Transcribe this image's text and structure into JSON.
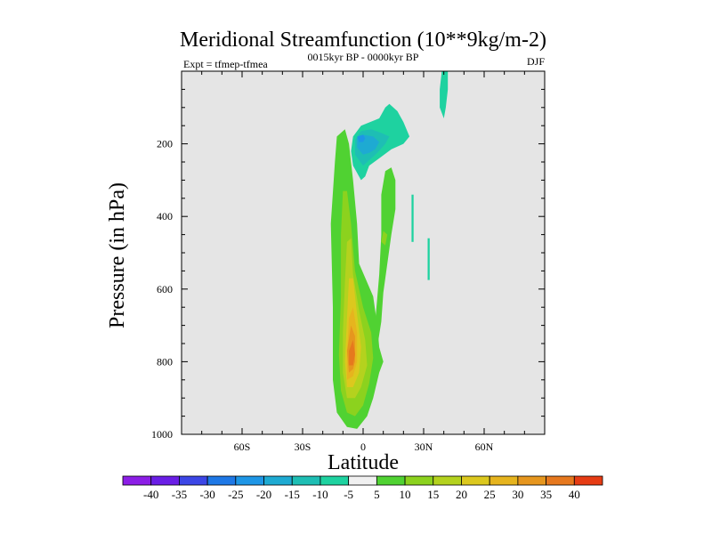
{
  "chart_data": {
    "type": "contour",
    "title": "Meridional Streamfunction (10**9kg/m-2)",
    "left_string": "Expt = tfmep-tfmea",
    "center_string": "0015kyr BP - 0000kyr BP",
    "right_string": "DJF",
    "xlabel": "Latitude",
    "ylabel": "Pressure (in hPa)",
    "xlim": [
      -90,
      90
    ],
    "ylim": [
      1000,
      0
    ],
    "x_ticks": [
      {
        "value": -60,
        "label": "60S"
      },
      {
        "value": -30,
        "label": "30S"
      },
      {
        "value": 0,
        "label": "0"
      },
      {
        "value": 30,
        "label": "30N"
      },
      {
        "value": 60,
        "label": "60N"
      }
    ],
    "y_ticks": [
      {
        "value": 200,
        "label": "200"
      },
      {
        "value": 400,
        "label": "400"
      },
      {
        "value": 600,
        "label": "600"
      },
      {
        "value": 800,
        "label": "800"
      },
      {
        "value": 1000,
        "label": "1000"
      }
    ],
    "background_color": "#e5e5e5",
    "colorbar": {
      "levels": [
        -40,
        -35,
        -30,
        -25,
        -20,
        -15,
        -10,
        -5,
        5,
        10,
        15,
        20,
        25,
        30,
        35,
        40
      ],
      "labels": [
        "-40",
        "-35",
        "-30",
        "-25",
        "-20",
        "-15",
        "-10",
        "-5",
        "5",
        "10",
        "15",
        "20",
        "25",
        "30",
        "35",
        "40"
      ],
      "colors": [
        "#8c1ee6",
        "#6a1ee6",
        "#3c46e6",
        "#1e78e6",
        "#1e96e6",
        "#1eaad2",
        "#1ebeb4",
        "#1ed2a0",
        "#f0f0f0",
        "#50d232",
        "#8cd21e",
        "#b4d21e",
        "#dcc81e",
        "#e6b41e",
        "#e6961e",
        "#e6781e",
        "#e63c14"
      ]
    },
    "contours": [
      {
        "name": "positive-cell-outer",
        "level": 5,
        "points": [
          [
            -8,
            980
          ],
          [
            -13,
            940
          ],
          [
            -15,
            850
          ],
          [
            -15,
            650
          ],
          [
            -16,
            420
          ],
          [
            -14,
            250
          ],
          [
            -13,
            180
          ],
          [
            -9,
            160
          ],
          [
            -7,
            200
          ],
          [
            -5,
            300
          ],
          [
            -3,
            420
          ],
          [
            -2,
            530
          ],
          [
            5,
            620
          ],
          [
            7,
            700
          ],
          [
            8,
            760
          ],
          [
            10,
            800
          ],
          [
            8,
            830
          ],
          [
            5,
            900
          ],
          [
            2,
            950
          ],
          [
            -3,
            985
          ]
        ]
      },
      {
        "name": "positive-cell-10",
        "level": 10,
        "points": [
          [
            -8,
            940
          ],
          [
            -11,
            880
          ],
          [
            -12,
            780
          ],
          [
            -11,
            620
          ],
          [
            -11,
            450
          ],
          [
            -10,
            330
          ],
          [
            -8,
            330
          ],
          [
            -6,
            420
          ],
          [
            -4,
            550
          ],
          [
            0,
            650
          ],
          [
            4,
            720
          ],
          [
            5,
            790
          ],
          [
            3,
            860
          ],
          [
            0,
            920
          ],
          [
            -4,
            950
          ]
        ]
      },
      {
        "name": "positive-cell-15",
        "level": 15,
        "points": [
          [
            -8,
            900
          ],
          [
            -10,
            830
          ],
          [
            -10,
            720
          ],
          [
            -9,
            580
          ],
          [
            -8,
            470
          ],
          [
            -6,
            460
          ],
          [
            -5,
            560
          ],
          [
            -2,
            660
          ],
          [
            1,
            740
          ],
          [
            2,
            810
          ],
          [
            -1,
            870
          ],
          [
            -4,
            900
          ]
        ]
      },
      {
        "name": "positive-cell-20",
        "level": 20,
        "points": [
          [
            -8,
            870
          ],
          [
            -9,
            800
          ],
          [
            -8,
            680
          ],
          [
            -7,
            570
          ],
          [
            -5,
            570
          ],
          [
            -3,
            670
          ],
          [
            -1,
            760
          ],
          [
            -2,
            830
          ],
          [
            -5,
            870
          ]
        ]
      },
      {
        "name": "positive-cell-25",
        "level": 25,
        "points": [
          [
            -8,
            850
          ],
          [
            -8,
            780
          ],
          [
            -7,
            680
          ],
          [
            -5,
            650
          ],
          [
            -3,
            720
          ],
          [
            -3,
            800
          ],
          [
            -5,
            840
          ]
        ]
      },
      {
        "name": "positive-cell-30",
        "level": 30,
        "points": [
          [
            -7,
            830
          ],
          [
            -8,
            770
          ],
          [
            -6,
            700
          ],
          [
            -4,
            730
          ],
          [
            -4,
            800
          ],
          [
            -5,
            820
          ]
        ]
      },
      {
        "name": "positive-cell-35",
        "level": 35,
        "points": [
          [
            -7,
            810
          ],
          [
            -7,
            770
          ],
          [
            -5,
            740
          ],
          [
            -4,
            780
          ],
          [
            -5,
            810
          ]
        ]
      },
      {
        "name": "positive-tongue-north",
        "level": 5,
        "points": [
          [
            7,
            760
          ],
          [
            6,
            690
          ],
          [
            8,
            560
          ],
          [
            9,
            450
          ],
          [
            9,
            340
          ],
          [
            11,
            275
          ],
          [
            14,
            265
          ],
          [
            16,
            300
          ],
          [
            16,
            380
          ],
          [
            14,
            450
          ],
          [
            12,
            530
          ],
          [
            10,
            610
          ],
          [
            9,
            690
          ]
        ]
      },
      {
        "name": "positive-tongue-blob",
        "level": 10,
        "points": [
          [
            9,
            470
          ],
          [
            10,
            440
          ],
          [
            12,
            450
          ],
          [
            11,
            480
          ]
        ]
      },
      {
        "name": "negative-cell-outer",
        "level": -5,
        "points": [
          [
            -1,
            300
          ],
          [
            -5,
            260
          ],
          [
            -6,
            220
          ],
          [
            -5,
            180
          ],
          [
            -1,
            150
          ],
          [
            8,
            130
          ],
          [
            11,
            100
          ],
          [
            13,
            90
          ],
          [
            17,
            110
          ],
          [
            20,
            140
          ],
          [
            23,
            180
          ],
          [
            20,
            200
          ],
          [
            14,
            215
          ],
          [
            8,
            240
          ],
          [
            3,
            260
          ],
          [
            1,
            290
          ]
        ]
      },
      {
        "name": "negative-cell-10",
        "level": -10,
        "points": [
          [
            0,
            260
          ],
          [
            -4,
            230
          ],
          [
            -4,
            190
          ],
          [
            -1,
            165
          ],
          [
            4,
            160
          ],
          [
            9,
            170
          ],
          [
            13,
            180
          ],
          [
            11,
            200
          ],
          [
            7,
            225
          ],
          [
            3,
            245
          ]
        ]
      },
      {
        "name": "negative-cell-15",
        "level": -15,
        "points": [
          [
            0,
            230
          ],
          [
            -3,
            210
          ],
          [
            -3,
            185
          ],
          [
            0,
            175
          ],
          [
            5,
            180
          ],
          [
            8,
            195
          ],
          [
            6,
            215
          ],
          [
            3,
            225
          ]
        ]
      },
      {
        "name": "negative-cell-20",
        "level": -20,
        "points": [
          [
            -2,
            195
          ],
          [
            -3,
            180
          ],
          [
            0,
            175
          ],
          [
            1,
            185
          ],
          [
            0,
            195
          ]
        ]
      },
      {
        "name": "negative-streak-upper",
        "level": -5,
        "points": [
          [
            39,
            0
          ],
          [
            42,
            0
          ],
          [
            42,
            50
          ],
          [
            41,
            100
          ],
          [
            40,
            130
          ],
          [
            38,
            100
          ],
          [
            38,
            50
          ]
        ]
      },
      {
        "name": "negative-streak-mid",
        "level": -5,
        "points": [
          [
            24,
            340
          ],
          [
            25,
            340
          ],
          [
            25,
            470
          ],
          [
            24,
            470
          ]
        ]
      },
      {
        "name": "negative-streak-low",
        "level": -5,
        "points": [
          [
            32,
            460
          ],
          [
            33,
            460
          ],
          [
            33,
            575
          ],
          [
            32,
            575
          ]
        ]
      }
    ]
  }
}
